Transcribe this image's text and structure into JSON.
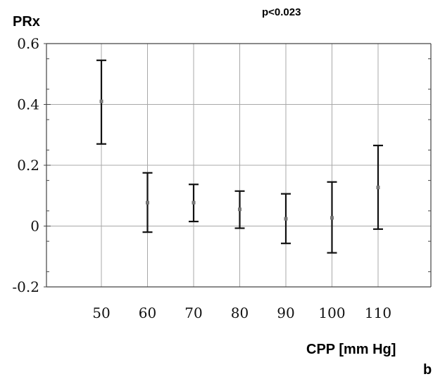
{
  "chart_data": {
    "type": "scatter",
    "ylabel": "PRx",
    "xlabel": "CPP [mm Hg]",
    "annotation": "p<0.023",
    "panel_label": "b",
    "categories": [
      "50",
      "60",
      "70",
      "80",
      "90",
      "100",
      "110"
    ],
    "series": [
      {
        "means": [
          0.41,
          0.077,
          0.077,
          0.055,
          0.024,
          0.027,
          0.127
        ],
        "lower": [
          0.27,
          -0.02,
          0.015,
          -0.007,
          -0.057,
          -0.088,
          -0.01
        ],
        "upper": [
          0.545,
          0.175,
          0.137,
          0.115,
          0.106,
          0.145,
          0.265
        ]
      }
    ],
    "yticks": [
      "0.6",
      "0.4",
      "0.2",
      "0",
      "-0.2"
    ],
    "ytick_values": [
      0.6,
      0.4,
      0.2,
      0,
      -0.2
    ],
    "ylim": [
      -0.2,
      0.6
    ],
    "grid": true,
    "colors": {
      "marks": "#111111",
      "grid": "#a8a8a8",
      "axes": "#444444"
    }
  }
}
